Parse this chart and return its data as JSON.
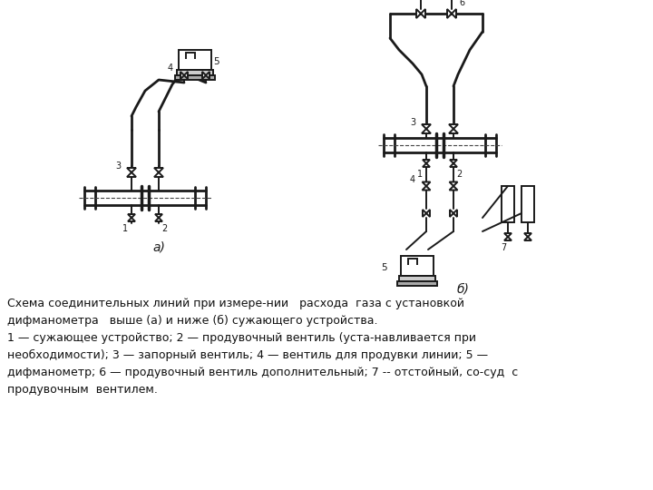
{
  "bg_color": "#ffffff",
  "fig_width": 7.2,
  "fig_height": 5.4,
  "dpi": 100,
  "caption_lines": [
    "Схема соединительных линий при измере-нии   расхода  газа с установкой",
    "дифманометра   выше (а) и ниже (б) сужающего устройства.",
    "1 — сужающее устройство; 2 — продувочный вентиль (уста-навливается при",
    "необходимости); 3 — запорный вентиль; 4 — вентиль для продувки линии; 5 —",
    "дифманометр; 6 — продувочный вентиль дополнительный; 7 -- отстойный, со-суд  с",
    "продувочным  вентилем."
  ]
}
